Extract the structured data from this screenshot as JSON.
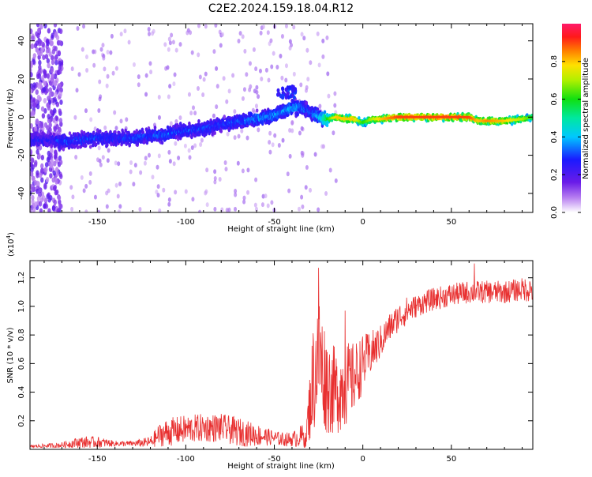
{
  "figure_title": "C2E2.2024.159.18.04.R12",
  "chart_data": [
    {
      "type": "heatmap",
      "panel": "spectrogram",
      "xlabel": "Height of straight line (km)",
      "ylabel": "Frequency (Hz)",
      "xlim": [
        -188,
        96
      ],
      "ylim": [
        -50,
        49
      ],
      "x_ticks": [
        -150,
        -100,
        -50,
        0,
        50
      ],
      "x_tick_labels": [
        "-150",
        "-100",
        "-50",
        "0",
        "50"
      ],
      "y_ticks": [
        -40,
        -20,
        0,
        20,
        40
      ],
      "y_tick_labels": [
        "-40",
        "-20",
        "0",
        "20",
        "40"
      ],
      "colorbar": {
        "label": "Normalized spectral amplitude",
        "range": [
          0.0,
          1.0
        ],
        "ticks": [
          0.0,
          0.2,
          0.4,
          0.6,
          0.8
        ],
        "tick_labels": [
          "0.0",
          "0.2",
          "0.4",
          "0.6",
          "0.8"
        ],
        "colormap": "rainbow (white-violet-blue-cyan-green-yellow-orange-red-magenta)"
      },
      "ridge": {
        "x": [
          -188,
          -175,
          -170,
          -160,
          -150,
          -140,
          -130,
          -120,
          -110,
          -100,
          -90,
          -80,
          -70,
          -60,
          -50,
          -45,
          -40,
          -35,
          -30,
          -25,
          -20,
          -15,
          -10,
          -5,
          0,
          5,
          10,
          20,
          30,
          40,
          50,
          60,
          65,
          70,
          80,
          90,
          96
        ],
        "frequency": [
          -12,
          -12,
          -13,
          -12,
          -11,
          -11,
          -11,
          -10,
          -9,
          -7,
          -6,
          -4,
          -2,
          -1,
          1,
          3,
          5,
          5,
          3,
          0,
          -1,
          0,
          -1,
          -1,
          -3,
          -1,
          -1,
          0,
          0,
          0,
          0,
          0,
          -2,
          -2,
          -2,
          -1,
          0
        ],
        "amplitude": [
          0.25,
          0.25,
          0.3,
          0.3,
          0.3,
          0.28,
          0.3,
          0.32,
          0.32,
          0.3,
          0.3,
          0.3,
          0.32,
          0.35,
          0.38,
          0.35,
          0.4,
          0.35,
          0.3,
          0.4,
          0.6,
          0.8,
          0.8,
          0.8,
          0.6,
          0.7,
          0.8,
          0.9,
          0.9,
          0.9,
          0.9,
          0.9,
          0.8,
          0.85,
          0.8,
          0.7,
          0.6
        ]
      },
      "broadband_noise_x_range": [
        -188,
        -170
      ],
      "side_feature": {
        "x": [
          -48,
          -38
        ],
        "frequency": [
          10,
          16
        ]
      }
    },
    {
      "type": "line",
      "panel": "snr",
      "xlabel": "Height of straight line (km)",
      "ylabel": "SNR (10 * v/v)",
      "y_multiplier_label": "(x10",
      "y_multiplier_exponent": "4",
      "y_multiplier_close": ")",
      "xlim": [
        -188,
        96
      ],
      "ylim": [
        0.0,
        1.32
      ],
      "y_units": "x10^4",
      "x_ticks": [
        -150,
        -100,
        -50,
        0,
        50
      ],
      "x_tick_labels": [
        "-150",
        "-100",
        "-50",
        "0",
        "50"
      ],
      "y_ticks": [
        0.2,
        0.4,
        0.6,
        0.8,
        1.0,
        1.2
      ],
      "y_tick_labels": [
        "0.2",
        "0.4",
        "0.6",
        "0.8",
        "1.0",
        "1.2"
      ],
      "color": "#e83030",
      "series": [
        {
          "x": [
            -188,
            -170,
            -160,
            -150,
            -140,
            -130,
            -120,
            -115,
            -110,
            -100,
            -90,
            -80,
            -70,
            -60,
            -50,
            -45,
            -40,
            -32,
            -28,
            -25,
            -20,
            -15,
            -10,
            -5,
            0,
            5,
            10,
            15,
            20,
            25,
            30,
            35,
            40,
            50,
            60,
            70,
            80,
            90,
            96
          ],
          "y": [
            0.02,
            0.03,
            0.05,
            0.05,
            0.04,
            0.04,
            0.05,
            0.1,
            0.12,
            0.14,
            0.15,
            0.15,
            0.12,
            0.1,
            0.08,
            0.07,
            0.07,
            0.1,
            0.5,
            0.65,
            0.45,
            0.4,
            0.45,
            0.5,
            0.6,
            0.68,
            0.75,
            0.85,
            0.92,
            0.97,
            1.0,
            1.03,
            1.05,
            1.08,
            1.1,
            1.1,
            1.1,
            1.12,
            1.12
          ],
          "noise_amplitude": [
            0.01,
            0.02,
            0.04,
            0.04,
            0.02,
            0.02,
            0.04,
            0.08,
            0.1,
            0.1,
            0.1,
            0.1,
            0.1,
            0.08,
            0.05,
            0.05,
            0.05,
            0.1,
            0.4,
            0.45,
            0.35,
            0.3,
            0.3,
            0.25,
            0.2,
            0.15,
            0.12,
            0.1,
            0.1,
            0.1,
            0.08,
            0.08,
            0.08,
            0.08,
            0.08,
            0.08,
            0.08,
            0.08,
            0.1
          ]
        }
      ],
      "peaks": [
        {
          "x": -25,
          "y": 1.27
        },
        {
          "x": -24.5,
          "y": 1.0
        },
        {
          "x": -10,
          "y": 0.97
        },
        {
          "x": 63,
          "y": 1.3
        }
      ]
    }
  ]
}
